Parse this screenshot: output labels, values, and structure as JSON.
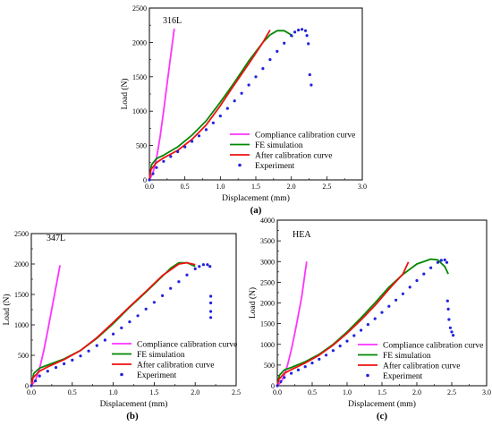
{
  "colors": {
    "compliance": "#ff33ff",
    "fe": "#008800",
    "after": "#ee1111",
    "experiment": "#2222dd"
  },
  "chart_data": [
    {
      "type": "line",
      "caption": "(a)",
      "panel_label": "316L",
      "xlabel": "Displacement (mm)",
      "ylabel": "Load (N)",
      "xlim": [
        0,
        3.0
      ],
      "ylim": [
        0,
        2500
      ],
      "x_ticks": [
        "0.0",
        "0.5",
        "1.0",
        "1.5",
        "2.0",
        "2.5",
        "3.0"
      ],
      "y_ticks": [
        "0",
        "500",
        "1000",
        "1500",
        "2000",
        "2500"
      ],
      "grid": false,
      "legend_position": "bottom-right",
      "series": [
        {
          "name": "Compliance calibration curve",
          "style": "line",
          "color_key": "compliance",
          "x": [
            0,
            0.05,
            0.1,
            0.15,
            0.2,
            0.25,
            0.3,
            0.35
          ],
          "y": [
            0,
            100,
            310,
            620,
            1000,
            1400,
            1800,
            2200
          ]
        },
        {
          "name": "FE simulation",
          "style": "line",
          "color_key": "fe",
          "x": [
            0,
            0.03,
            0.1,
            0.2,
            0.4,
            0.6,
            0.8,
            1.0,
            1.2,
            1.4,
            1.6,
            1.7,
            1.8,
            1.9,
            2.0,
            2.02
          ],
          "y": [
            0,
            220,
            310,
            360,
            480,
            650,
            860,
            1130,
            1420,
            1730,
            2000,
            2110,
            2170,
            2170,
            2110,
            2080
          ]
        },
        {
          "name": "After calibration curve",
          "style": "line",
          "color_key": "after",
          "x": [
            0,
            0.02,
            0.1,
            0.2,
            0.4,
            0.6,
            0.8,
            1.0,
            1.2,
            1.4,
            1.6,
            1.7
          ],
          "y": [
            0,
            150,
            250,
            320,
            430,
            590,
            800,
            1080,
            1390,
            1690,
            2000,
            2180
          ]
        },
        {
          "name": "Experiment",
          "style": "scatter",
          "color_key": "experiment",
          "x": [
            0,
            0.05,
            0.1,
            0.2,
            0.3,
            0.4,
            0.5,
            0.6,
            0.7,
            0.8,
            0.9,
            1.0,
            1.1,
            1.2,
            1.3,
            1.4,
            1.5,
            1.6,
            1.7,
            1.8,
            1.9,
            2.0,
            2.05,
            2.1,
            2.15,
            2.2,
            2.22,
            2.24,
            2.26,
            2.28
          ],
          "y": [
            0,
            90,
            180,
            270,
            340,
            410,
            480,
            560,
            640,
            730,
            830,
            930,
            1040,
            1150,
            1260,
            1380,
            1500,
            1620,
            1750,
            1870,
            1990,
            2100,
            2150,
            2180,
            2190,
            2170,
            2100,
            1980,
            1530,
            1380
          ]
        }
      ]
    },
    {
      "type": "line",
      "caption": "(b)",
      "panel_label": "347L",
      "xlabel": "Displacement (mm)",
      "ylabel": "Load (N)",
      "xlim": [
        0,
        2.5
      ],
      "ylim": [
        0,
        2500
      ],
      "x_ticks": [
        "0.0",
        "0.5",
        "1.0",
        "1.5",
        "2.0",
        "2.5"
      ],
      "y_ticks": [
        "0",
        "500",
        "1000",
        "1500",
        "2000",
        "2500"
      ],
      "grid": false,
      "legend_position": "bottom-right",
      "series": [
        {
          "name": "Compliance calibration curve",
          "style": "line",
          "color_key": "compliance",
          "x": [
            0,
            0.05,
            0.1,
            0.15,
            0.2,
            0.25,
            0.3,
            0.35
          ],
          "y": [
            0,
            90,
            280,
            560,
            900,
            1260,
            1620,
            1980
          ]
        },
        {
          "name": "FE simulation",
          "style": "line",
          "color_key": "fe",
          "x": [
            0,
            0.03,
            0.1,
            0.2,
            0.4,
            0.6,
            0.8,
            1.0,
            1.2,
            1.4,
            1.6,
            1.7,
            1.8,
            1.9,
            2.0
          ],
          "y": [
            0,
            200,
            290,
            340,
            440,
            580,
            780,
            1020,
            1290,
            1540,
            1800,
            1930,
            2020,
            2020,
            1960
          ]
        },
        {
          "name": "After calibration curve",
          "style": "line",
          "color_key": "after",
          "x": [
            0,
            0.02,
            0.1,
            0.2,
            0.4,
            0.6,
            0.8,
            1.0,
            1.2,
            1.4,
            1.6,
            1.8,
            1.9,
            2.0
          ],
          "y": [
            0,
            130,
            240,
            310,
            430,
            580,
            790,
            1040,
            1300,
            1550,
            1810,
            2000,
            2020,
            1990
          ]
        },
        {
          "name": "Experiment",
          "style": "scatter",
          "color_key": "experiment",
          "x": [
            0,
            0.05,
            0.1,
            0.2,
            0.3,
            0.4,
            0.5,
            0.6,
            0.7,
            0.8,
            0.9,
            1.0,
            1.1,
            1.2,
            1.3,
            1.4,
            1.5,
            1.6,
            1.7,
            1.8,
            1.9,
            2.0,
            2.05,
            2.1,
            2.15,
            2.18,
            2.19,
            2.19,
            2.19,
            2.19
          ],
          "y": [
            0,
            80,
            160,
            240,
            300,
            360,
            420,
            490,
            570,
            660,
            750,
            850,
            950,
            1050,
            1150,
            1260,
            1370,
            1480,
            1600,
            1710,
            1820,
            1920,
            1960,
            1990,
            1990,
            1960,
            1470,
            1360,
            1220,
            1120
          ]
        }
      ]
    },
    {
      "type": "line",
      "caption": "(c)",
      "panel_label": "HEA",
      "xlabel": "Displacement (mm)",
      "ylabel": "Load (N)",
      "xlim": [
        0,
        3.0
      ],
      "ylim": [
        0,
        4000
      ],
      "x_ticks": [
        "0.0",
        "0.5",
        "1.0",
        "1.5",
        "2.0",
        "2.5",
        "3.0"
      ],
      "y_ticks": [
        "0",
        "500",
        "1000",
        "1500",
        "2000",
        "2500",
        "3000",
        "3500",
        "4000"
      ],
      "grid": false,
      "legend_position": "bottom-right",
      "series": [
        {
          "name": "Compliance calibration curve",
          "style": "line",
          "color_key": "compliance",
          "x": [
            0,
            0.05,
            0.1,
            0.15,
            0.2,
            0.25,
            0.3,
            0.35,
            0.42
          ],
          "y": [
            0,
            80,
            250,
            520,
            860,
            1260,
            1700,
            2150,
            3000
          ]
        },
        {
          "name": "FE simulation",
          "style": "line",
          "color_key": "fe",
          "x": [
            0,
            0.03,
            0.1,
            0.2,
            0.4,
            0.6,
            0.8,
            1.0,
            1.2,
            1.4,
            1.6,
            1.8,
            2.0,
            2.2,
            2.3,
            2.4,
            2.45
          ],
          "y": [
            0,
            250,
            380,
            440,
            580,
            760,
            1000,
            1300,
            1640,
            2000,
            2380,
            2690,
            2940,
            3060,
            3040,
            2880,
            2700
          ]
        },
        {
          "name": "After calibration curve",
          "style": "line",
          "color_key": "after",
          "x": [
            0,
            0.02,
            0.1,
            0.2,
            0.4,
            0.6,
            0.8,
            1.0,
            1.2,
            1.4,
            1.6,
            1.8,
            1.88
          ],
          "y": [
            0,
            150,
            300,
            390,
            550,
            740,
            980,
            1270,
            1590,
            1940,
            2330,
            2700,
            2990
          ]
        },
        {
          "name": "Experiment",
          "style": "scatter",
          "color_key": "experiment",
          "x": [
            0,
            0.05,
            0.1,
            0.2,
            0.3,
            0.4,
            0.5,
            0.6,
            0.7,
            0.8,
            0.9,
            1.0,
            1.1,
            1.2,
            1.3,
            1.4,
            1.5,
            1.6,
            1.7,
            1.8,
            1.9,
            2.0,
            2.1,
            2.2,
            2.3,
            2.35,
            2.4,
            2.43,
            2.44,
            2.45,
            2.46,
            2.48,
            2.5,
            2.52
          ],
          "y": [
            0,
            100,
            200,
            300,
            380,
            460,
            550,
            640,
            740,
            850,
            960,
            1080,
            1210,
            1340,
            1480,
            1620,
            1770,
            1920,
            2070,
            2220,
            2380,
            2540,
            2700,
            2850,
            2980,
            3030,
            3040,
            2980,
            2050,
            1850,
            1600,
            1400,
            1300,
            1220
          ]
        }
      ]
    }
  ]
}
